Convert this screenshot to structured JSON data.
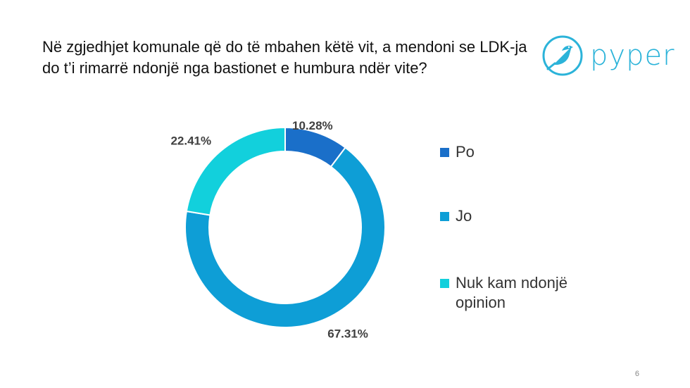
{
  "header": {
    "title": "Në zgjedhjet komunale që do të mbahen këtë vit, a mendoni se LDK-ja do t’i rimarrë ndonjë nga bastionet e humbura ndër vite?",
    "logo_text": "pyper",
    "logo_icon": "bird-icon"
  },
  "colors": {
    "po": "#1a6fc9",
    "jo": "#0e9ed6",
    "nuk": "#12d0dc",
    "brand": "#2bb3d9"
  },
  "legend": [
    {
      "label": "Po"
    },
    {
      "label": "Jo"
    },
    {
      "label": "Nuk kam ndonjë opinion"
    }
  ],
  "chart_data": {
    "type": "pie",
    "categories": [
      "Po",
      "Jo",
      "Nuk kam ndonjë opinion"
    ],
    "values": [
      10.28,
      67.31,
      22.41
    ],
    "labels": [
      "10.28%",
      "67.31%",
      "22.41%"
    ],
    "title": "",
    "legend_position": "right"
  },
  "footer": {
    "page_number": "6"
  }
}
